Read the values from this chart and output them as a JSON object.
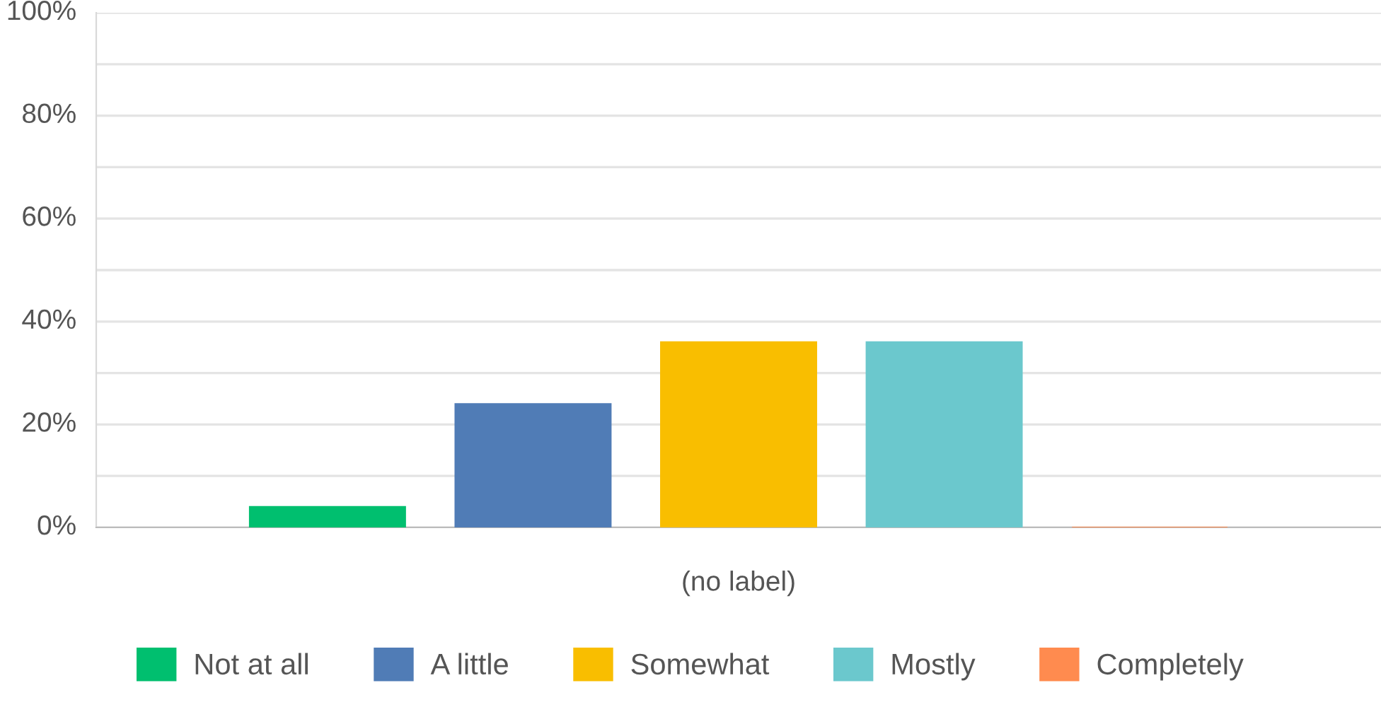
{
  "chart_data": {
    "type": "bar",
    "categories": [
      "(no label)"
    ],
    "series": [
      {
        "name": "Not at all",
        "color": "#00bf6f",
        "values": [
          4
        ]
      },
      {
        "name": "A little",
        "color": "#507cb6",
        "values": [
          24
        ]
      },
      {
        "name": "Somewhat",
        "color": "#f9be00",
        "values": [
          36
        ]
      },
      {
        "name": "Mostly",
        "color": "#6bc8cd",
        "values": [
          36
        ]
      },
      {
        "name": "Completely",
        "color": "#ff8b4f",
        "values": [
          0
        ]
      }
    ],
    "ylim": [
      0,
      100
    ],
    "yticks": [
      {
        "value": 0,
        "label": "0%"
      },
      {
        "value": 10,
        "label": null
      },
      {
        "value": 20,
        "label": "20%"
      },
      {
        "value": 30,
        "label": null
      },
      {
        "value": 40,
        "label": "40%"
      },
      {
        "value": 50,
        "label": null
      },
      {
        "value": 60,
        "label": "60%"
      },
      {
        "value": 70,
        "label": null
      },
      {
        "value": 80,
        "label": "80%"
      },
      {
        "value": 90,
        "label": null
      },
      {
        "value": 100,
        "label": "100%"
      }
    ],
    "grid": "y",
    "legend": "bottom"
  }
}
